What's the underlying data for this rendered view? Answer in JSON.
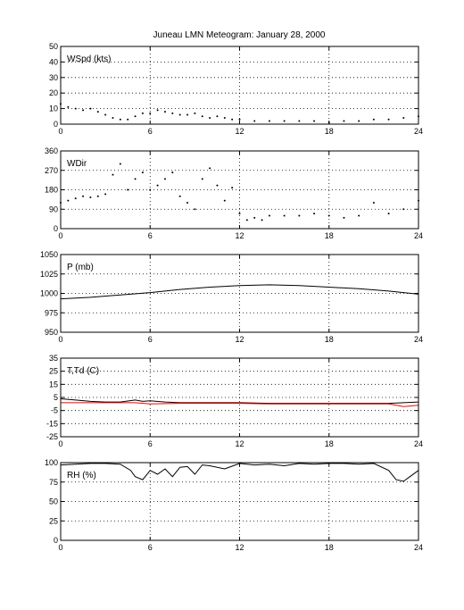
{
  "figure": {
    "title": "Juneau LMN Meteogram:    January 28, 2000"
  },
  "chart_data": [
    {
      "id": "wspd",
      "type": "scatter",
      "label": "WSpd (kts)",
      "xlim": [
        0,
        24
      ],
      "xticks": [
        0,
        6,
        12,
        18,
        24
      ],
      "ylim": [
        0,
        50
      ],
      "yticks": [
        0,
        10,
        20,
        30,
        40,
        50
      ],
      "grid": true,
      "series": [
        {
          "color": "#000000",
          "mode": "points",
          "x": [
            0,
            0.5,
            1,
            1.5,
            2,
            2.5,
            3,
            3.5,
            4,
            4.5,
            5,
            5.5,
            6,
            6.5,
            7,
            7.5,
            8,
            8.5,
            9,
            9.5,
            10,
            10.5,
            11,
            11.5,
            12,
            13,
            14,
            15,
            16,
            17,
            18,
            19,
            20,
            21,
            22,
            23,
            24
          ],
          "y": [
            13,
            11,
            10,
            9,
            10,
            8,
            6,
            4,
            3,
            3,
            5,
            7,
            7,
            9,
            8,
            7,
            6,
            6,
            7,
            5,
            4,
            5,
            4,
            3,
            3,
            2,
            2,
            2,
            2,
            2,
            1,
            2,
            2,
            3,
            3,
            4,
            5
          ]
        }
      ]
    },
    {
      "id": "wdir",
      "type": "scatter",
      "label": "WDir",
      "xlim": [
        0,
        24
      ],
      "xticks": [
        0,
        6,
        12,
        18,
        24
      ],
      "ylim": [
        0,
        360
      ],
      "yticks": [
        0,
        90,
        180,
        270,
        360
      ],
      "grid": true,
      "series": [
        {
          "color": "#000000",
          "mode": "points",
          "x": [
            0,
            0.5,
            1,
            1.5,
            2,
            2.5,
            3,
            3.5,
            4,
            4.5,
            5,
            5.5,
            6,
            6.5,
            7,
            7.5,
            8,
            8.5,
            9,
            9.5,
            10,
            10.5,
            11,
            11.5,
            12,
            12.5,
            13,
            13.5,
            14,
            15,
            16,
            17,
            18,
            19,
            20,
            21,
            22,
            23,
            24
          ],
          "y": [
            120,
            130,
            140,
            150,
            145,
            150,
            160,
            250,
            300,
            180,
            230,
            260,
            180,
            200,
            230,
            260,
            150,
            120,
            90,
            230,
            280,
            200,
            130,
            190,
            70,
            40,
            50,
            40,
            60,
            60,
            60,
            70,
            60,
            50,
            60,
            120,
            70,
            90,
            130
          ]
        }
      ]
    },
    {
      "id": "pres",
      "type": "line",
      "label": "P (mb)",
      "xlim": [
        0,
        24
      ],
      "xticks": [
        0,
        6,
        12,
        18,
        24
      ],
      "ylim": [
        950,
        1050
      ],
      "yticks": [
        950,
        975,
        1000,
        1025,
        1050
      ],
      "grid": true,
      "series": [
        {
          "color": "#000000",
          "mode": "line",
          "x": [
            0,
            2,
            4,
            6,
            8,
            10,
            12,
            14,
            16,
            18,
            20,
            22,
            24
          ],
          "y": [
            993,
            995,
            998,
            1001,
            1005,
            1008,
            1010,
            1011,
            1010,
            1008,
            1006,
            1003,
            999
          ]
        }
      ]
    },
    {
      "id": "temp",
      "type": "line",
      "label": "T,Td (C)",
      "xlim": [
        0,
        24
      ],
      "xticks": [
        0,
        6,
        12,
        18,
        24
      ],
      "ylim": [
        -25,
        35
      ],
      "yticks": [
        -25,
        -15,
        -5,
        5,
        15,
        25,
        35
      ],
      "grid": true,
      "series": [
        {
          "color": "#000000",
          "mode": "line",
          "x": [
            0,
            1,
            2,
            3,
            4,
            5,
            5.5,
            6,
            7,
            8,
            10,
            12,
            14,
            16,
            18,
            20,
            22,
            23,
            24
          ],
          "y": [
            4,
            3,
            2,
            1.5,
            1.5,
            3,
            2,
            2.5,
            1.5,
            1,
            1,
            1,
            0.5,
            0.5,
            0.5,
            0.5,
            0.5,
            1,
            1.5
          ]
        },
        {
          "color": "#ff0000",
          "mode": "line",
          "x": [
            0,
            2,
            4,
            5,
            6,
            8,
            10,
            12,
            14,
            16,
            18,
            20,
            22,
            23,
            24
          ],
          "y": [
            1,
            1,
            1,
            1,
            0,
            0.5,
            0.5,
            0.5,
            0,
            0,
            0,
            0,
            0,
            -2,
            -1
          ]
        }
      ]
    },
    {
      "id": "rh",
      "type": "line",
      "label": "RH (%)",
      "xlim": [
        0,
        24
      ],
      "xticks": [
        0,
        6,
        12,
        18,
        24
      ],
      "ylim": [
        0,
        100
      ],
      "yticks": [
        0,
        25,
        50,
        75,
        100
      ],
      "grid": true,
      "series": [
        {
          "color": "#000000",
          "mode": "line",
          "x": [
            0,
            1,
            2,
            3,
            4,
            4.7,
            5,
            5.5,
            6,
            6.5,
            7,
            7.5,
            8,
            8.5,
            9,
            9.5,
            10,
            11,
            12,
            13,
            14,
            15,
            16,
            17,
            18,
            19,
            20,
            21,
            22,
            22.5,
            23,
            23.5,
            24
          ],
          "y": [
            97,
            98,
            99,
            99,
            98,
            90,
            82,
            78,
            90,
            85,
            92,
            82,
            94,
            95,
            85,
            97,
            96,
            92,
            99,
            97,
            98,
            96,
            99,
            98,
            99,
            99,
            98,
            99,
            90,
            78,
            76,
            83,
            90
          ]
        }
      ]
    }
  ]
}
